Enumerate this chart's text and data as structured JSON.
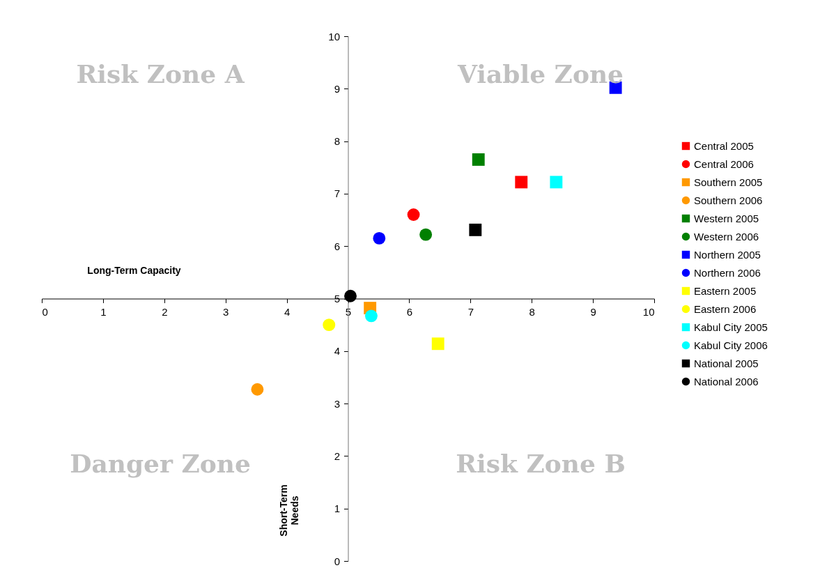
{
  "chart_data": {
    "type": "scatter",
    "xlabel": "Long-Term Capacity",
    "ylabel": "Short-Term Needs",
    "xlim": [
      0,
      10
    ],
    "ylim": [
      0,
      10
    ],
    "xticks": [
      0,
      1,
      2,
      3,
      4,
      5,
      6,
      7,
      8,
      9,
      10
    ],
    "yticks": [
      0,
      1,
      2,
      3,
      4,
      5,
      6,
      7,
      8,
      9,
      10
    ],
    "grid": false,
    "legend": "right",
    "annotations": [
      "Risk Zone A",
      "Viable Zone",
      "Danger Zone",
      "Risk Zone B"
    ],
    "series": [
      {
        "name": "Central 2005",
        "color": "#ff0000",
        "marker": "square",
        "x": [
          7.83
        ],
        "values": [
          7.22
        ]
      },
      {
        "name": "Central 2006",
        "color": "#ff0000",
        "marker": "circle",
        "x": [
          6.07
        ],
        "values": [
          6.6
        ]
      },
      {
        "name": "Southern 2005",
        "color": "#ff9900",
        "marker": "square",
        "x": [
          5.36
        ],
        "values": [
          4.82
        ]
      },
      {
        "name": "Southern 2006",
        "color": "#ff9900",
        "marker": "circle",
        "x": [
          3.52
        ],
        "values": [
          3.27
        ]
      },
      {
        "name": "Western 2005",
        "color": "#008000",
        "marker": "square",
        "x": [
          7.13
        ],
        "values": [
          7.65
        ]
      },
      {
        "name": "Western 2006",
        "color": "#008000",
        "marker": "circle",
        "x": [
          6.27
        ],
        "values": [
          6.22
        ]
      },
      {
        "name": "Northern 2005",
        "color": "#0000ff",
        "marker": "square",
        "x": [
          9.37
        ],
        "values": [
          9.02
        ]
      },
      {
        "name": "Northern 2006",
        "color": "#0000ff",
        "marker": "circle",
        "x": [
          5.51
        ],
        "values": [
          6.15
        ]
      },
      {
        "name": "Eastern 2005",
        "color": "#ffff00",
        "marker": "square",
        "x": [
          6.47
        ],
        "values": [
          4.14
        ]
      },
      {
        "name": "Eastern 2006",
        "color": "#ffff00",
        "marker": "circle",
        "x": [
          4.69
        ],
        "values": [
          4.5
        ]
      },
      {
        "name": "Kabul City 2005",
        "color": "#00ffff",
        "marker": "square",
        "x": [
          8.4
        ],
        "values": [
          7.22
        ]
      },
      {
        "name": "Kabul City 2006",
        "color": "#00ffff",
        "marker": "circle",
        "x": [
          5.38
        ],
        "values": [
          4.67
        ]
      },
      {
        "name": "National 2005",
        "color": "#000000",
        "marker": "square",
        "x": [
          7.08
        ],
        "values": [
          6.31
        ]
      },
      {
        "name": "National 2006",
        "color": "#000000",
        "marker": "circle",
        "x": [
          5.04
        ],
        "values": [
          5.05
        ]
      }
    ]
  }
}
